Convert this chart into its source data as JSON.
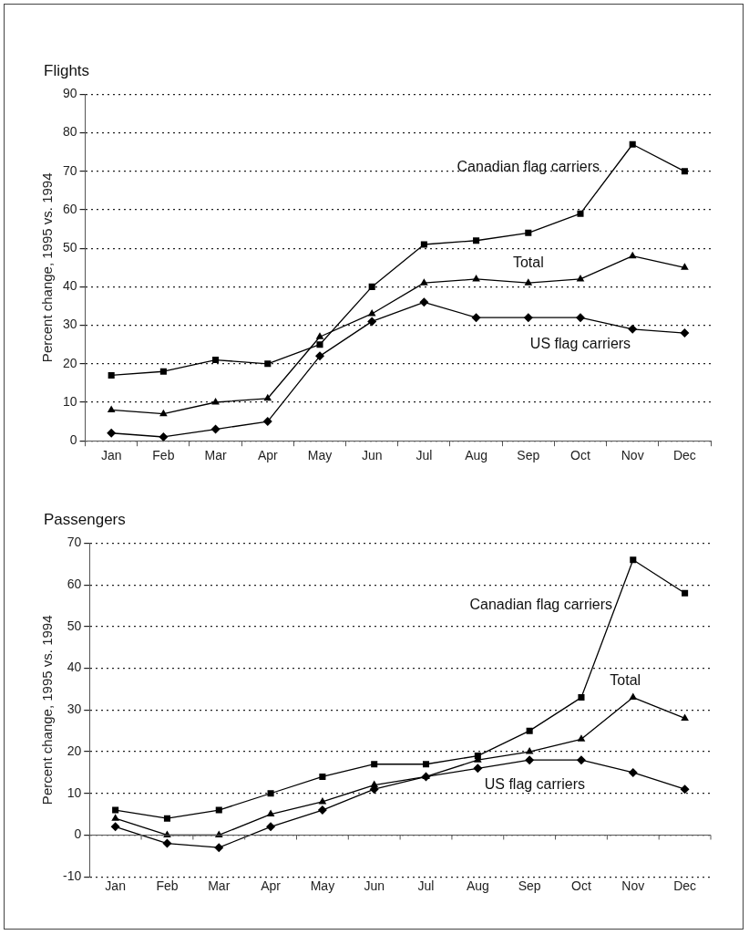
{
  "chart_data": [
    {
      "type": "line",
      "title": "Flights",
      "ylabel": "Percent change, 1995 vs. 1994",
      "categories": [
        "Jan",
        "Feb",
        "Mar",
        "Apr",
        "May",
        "Jun",
        "Jul",
        "Aug",
        "Sep",
        "Oct",
        "Nov",
        "Dec"
      ],
      "series": [
        {
          "name": "Canadian flag carriers",
          "color": "#000000",
          "marker": "square",
          "values": [
            17,
            18,
            21,
            20,
            25,
            40,
            51,
            52,
            54,
            59,
            77,
            70
          ]
        },
        {
          "name": "Total",
          "color": "#000000",
          "marker": "triangle",
          "values": [
            8,
            7,
            10,
            11,
            27,
            33,
            41,
            42,
            41,
            42,
            48,
            45
          ]
        },
        {
          "name": "US flag carriers",
          "color": "#000000",
          "marker": "diamond",
          "values": [
            2,
            1,
            3,
            5,
            22,
            31,
            36,
            32,
            32,
            32,
            29,
            28
          ]
        }
      ],
      "ylim": [
        0,
        90
      ],
      "yticks": [
        0,
        10,
        20,
        30,
        40,
        50,
        60,
        70,
        80,
        90
      ],
      "grid": "y",
      "legend": false,
      "line_style": "solid"
    },
    {
      "type": "line",
      "title": "Passengers",
      "ylabel": "Percent change, 1995 vs. 1994",
      "categories": [
        "Jan",
        "Feb",
        "Mar",
        "Apr",
        "May",
        "Jun",
        "Jul",
        "Aug",
        "Sep",
        "Oct",
        "Nov",
        "Dec"
      ],
      "series": [
        {
          "name": "Canadian flag carriers",
          "color": "#000000",
          "marker": "square",
          "values": [
            6,
            4,
            6,
            10,
            14,
            17,
            17,
            19,
            25,
            33,
            66,
            58
          ]
        },
        {
          "name": "Total",
          "color": "#000000",
          "marker": "triangle",
          "values": [
            4,
            0,
            0,
            5,
            8,
            12,
            14,
            18,
            20,
            23,
            33,
            28
          ]
        },
        {
          "name": "US flag carriers",
          "color": "#000000",
          "marker": "diamond",
          "values": [
            2,
            -2,
            -3,
            2,
            6,
            11,
            14,
            16,
            18,
            18,
            15,
            11
          ]
        }
      ],
      "ylim": [
        -10,
        70
      ],
      "yticks": [
        -10,
        0,
        10,
        20,
        30,
        40,
        50,
        60,
        70
      ],
      "grid": "y",
      "legend": false,
      "line_style": "solid"
    }
  ]
}
